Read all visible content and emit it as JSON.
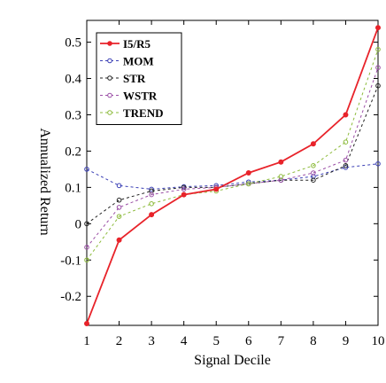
{
  "chart_data": {
    "type": "line",
    "title": "",
    "xlabel": "Signal Decile",
    "ylabel": "Annualized Return",
    "x": [
      1,
      2,
      3,
      4,
      5,
      6,
      7,
      8,
      9,
      10
    ],
    "xlim": [
      1,
      10
    ],
    "ylim": [
      -0.28,
      0.56
    ],
    "x_ticks": [
      "1",
      "2",
      "3",
      "4",
      "5",
      "6",
      "7",
      "8",
      "9",
      "10"
    ],
    "y_ticks": [
      {
        "value": 0.5,
        "label": "0.5"
      },
      {
        "value": 0.4,
        "label": "0.4"
      },
      {
        "value": 0.3,
        "label": "0.3"
      },
      {
        "value": 0.2,
        "label": "0.2"
      },
      {
        "value": 0.1,
        "label": "0.1"
      },
      {
        "value": 0.0,
        "label": "0"
      },
      {
        "value": -0.1,
        "label": "-0.1"
      },
      {
        "value": -0.2,
        "label": "-0.2"
      }
    ],
    "grid": false,
    "legend_position": "top-left",
    "series": [
      {
        "name": "I5/R5",
        "color": "#e8232a",
        "style": "solid",
        "values": [
          -0.275,
          -0.045,
          0.025,
          0.08,
          0.095,
          0.14,
          0.17,
          0.22,
          0.3,
          0.54
        ]
      },
      {
        "name": "MOM",
        "color": "#3a3fb5",
        "style": "dashed",
        "values": [
          0.15,
          0.105,
          0.095,
          0.102,
          0.105,
          0.115,
          0.12,
          0.13,
          0.155,
          0.165
        ]
      },
      {
        "name": "STR",
        "color": "#222222",
        "style": "dashed",
        "values": [
          -0.0,
          0.065,
          0.09,
          0.1,
          0.1,
          0.11,
          0.12,
          0.12,
          0.16,
          0.38
        ]
      },
      {
        "name": "WSTR",
        "color": "#9b4fa6",
        "style": "dashed",
        "values": [
          -0.065,
          0.045,
          0.08,
          0.095,
          0.1,
          0.11,
          0.12,
          0.14,
          0.175,
          0.43
        ]
      },
      {
        "name": "TREND",
        "color": "#8dbb3c",
        "style": "dashed",
        "values": [
          -0.1,
          0.02,
          0.055,
          0.08,
          0.09,
          0.11,
          0.13,
          0.16,
          0.225,
          0.48
        ]
      }
    ]
  }
}
